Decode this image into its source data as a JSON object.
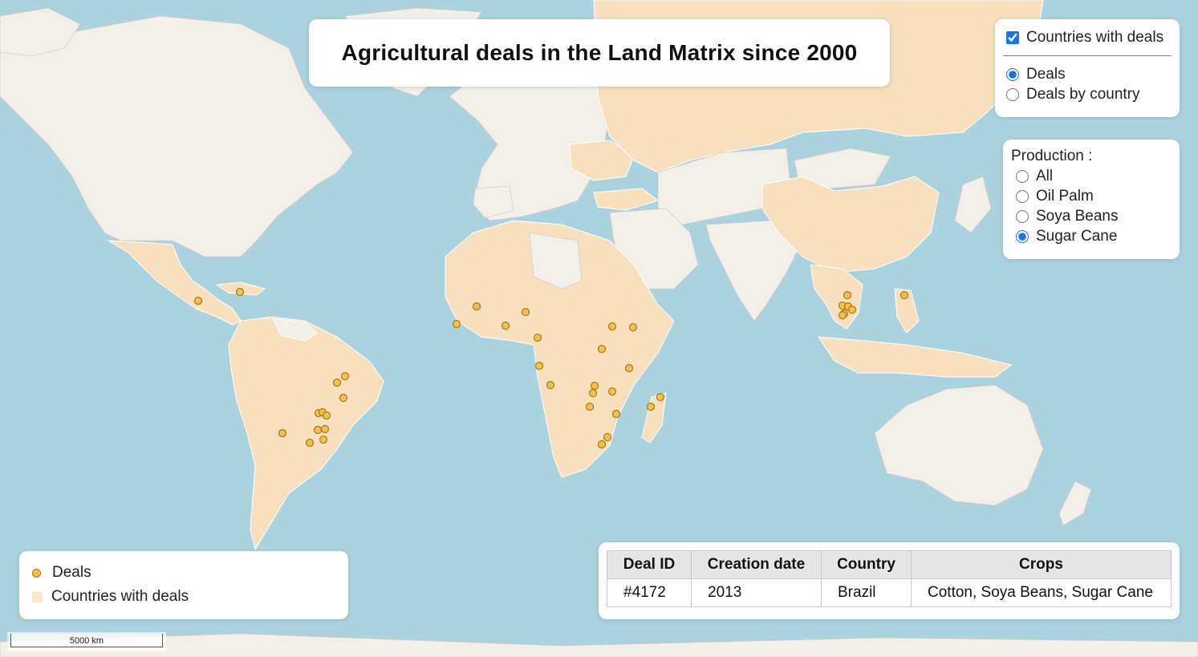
{
  "title": "Agricultural deals in the Land Matrix since 2000",
  "layers": {
    "countries_checkbox_label": "Countries with deals",
    "countries_checked": true,
    "options": [
      {
        "label": "Deals",
        "selected": true
      },
      {
        "label": "Deals by country",
        "selected": false
      }
    ]
  },
  "production": {
    "title": "Production :",
    "options": [
      {
        "label": "All",
        "selected": false
      },
      {
        "label": "Oil Palm",
        "selected": false
      },
      {
        "label": "Soya Beans",
        "selected": false
      },
      {
        "label": "Sugar Cane",
        "selected": true
      }
    ]
  },
  "legend": {
    "items": [
      {
        "label": "Deals",
        "symbol": "dot",
        "color": "#f6c04a"
      },
      {
        "label": "Countries with deals",
        "symbol": "square",
        "color": "#fbe6c8"
      }
    ]
  },
  "deal_table": {
    "headers": [
      "Deal ID",
      "Creation date",
      "Country",
      "Crops"
    ],
    "rows": [
      [
        "#4172",
        "2013",
        "Brazil",
        "Cotton, Soya Beans, Sugar Cane"
      ]
    ]
  },
  "scale": {
    "label": "5000 km"
  },
  "colors": {
    "ocean": "#aad3df",
    "land": "#f2efe9",
    "deal_country": "#f8dfbd",
    "deal_marker": "#f6c04a",
    "deal_marker_stroke": "#a07a20"
  }
}
